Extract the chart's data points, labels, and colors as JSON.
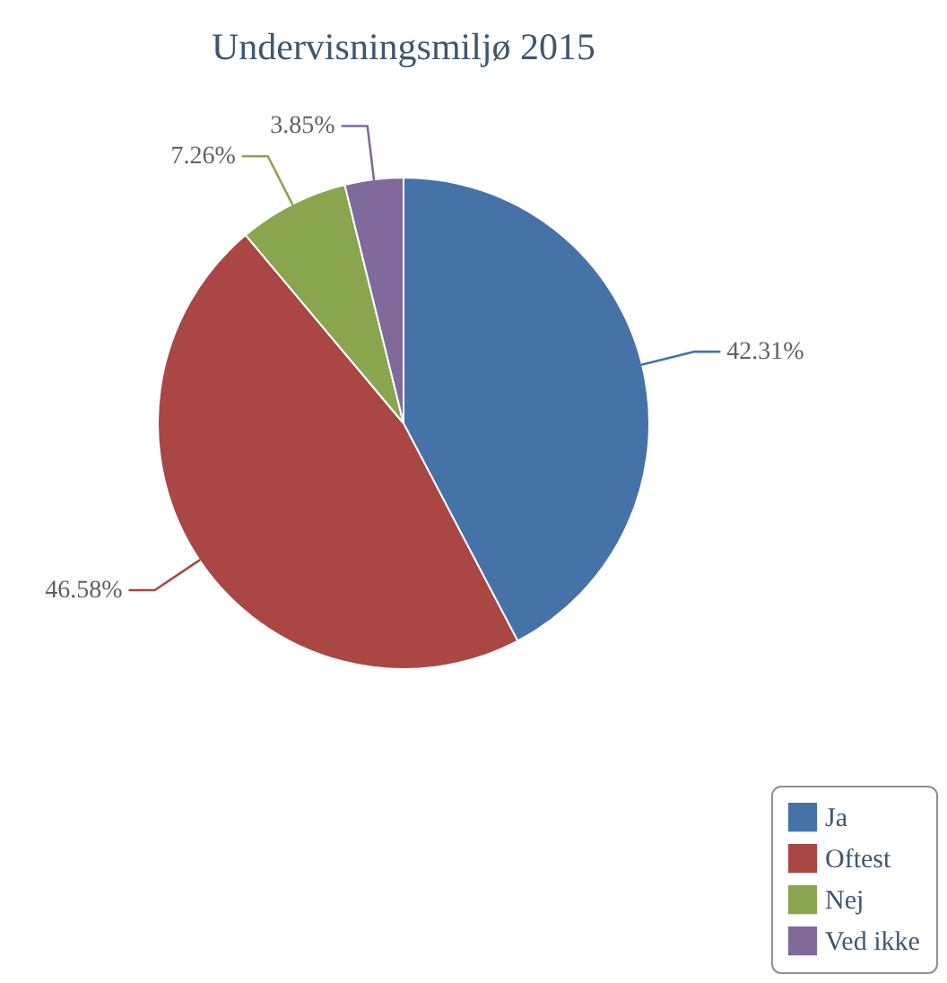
{
  "chart_data": {
    "type": "pie",
    "title": "Undervisningsmiljø 2015",
    "categories": [
      "Ja",
      "Oftest",
      "Nej",
      "Ved ikke"
    ],
    "values": [
      42.31,
      46.58,
      7.26,
      3.85
    ],
    "colors": [
      "#4572a7",
      "#aa4643",
      "#89a54e",
      "#80699b"
    ],
    "value_labels": [
      "42.31%",
      "46.58%",
      "7.26%",
      "3.85%"
    ],
    "legend": "bottom right"
  }
}
